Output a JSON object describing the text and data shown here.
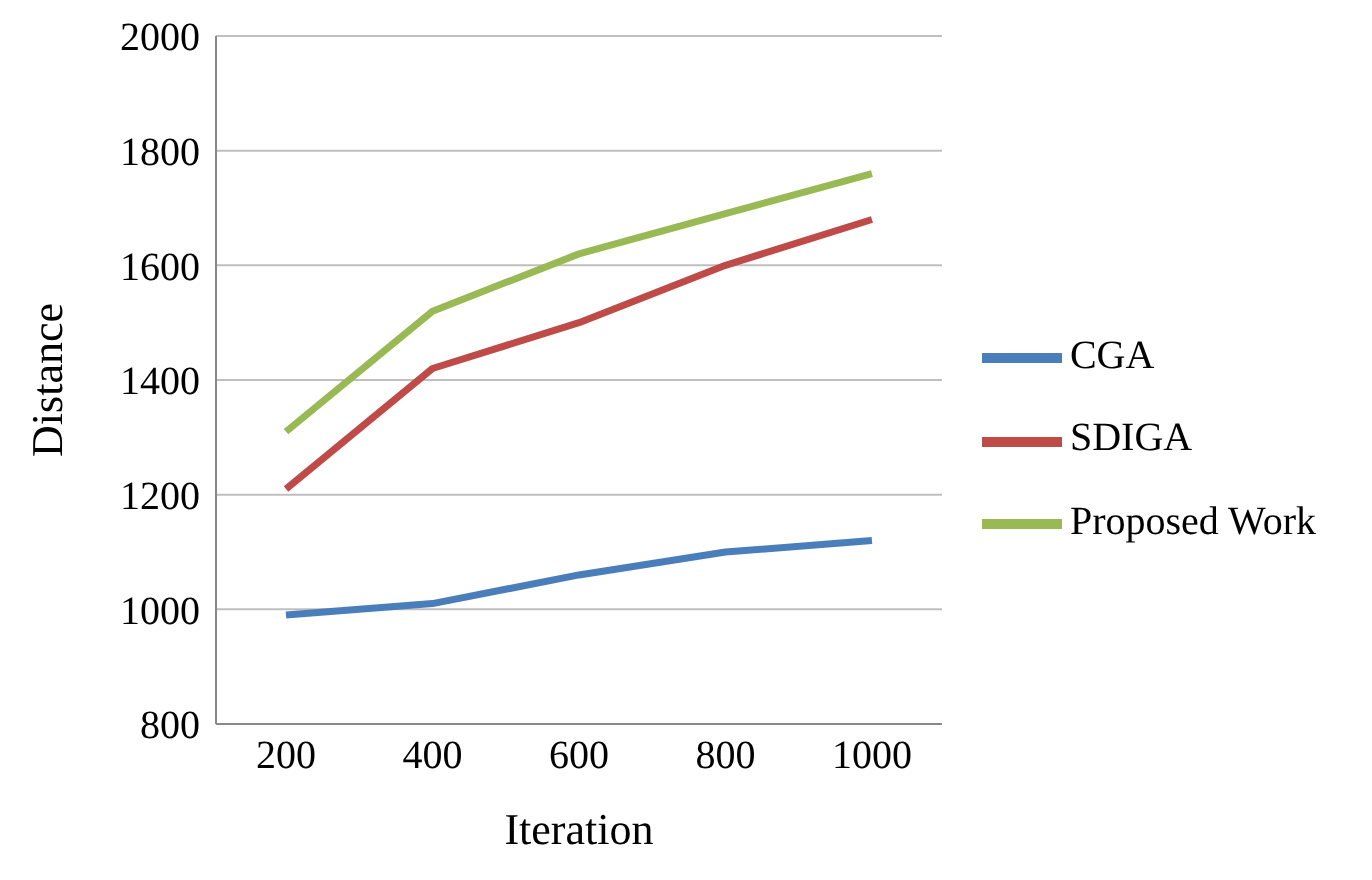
{
  "chart_data": {
    "type": "line",
    "xlabel": "Iteration",
    "ylabel": "Distance",
    "categories": [
      "200",
      "400",
      "600",
      "800",
      "1000"
    ],
    "series": [
      {
        "name": "CGA",
        "color": "#4a7ebb",
        "values": [
          990,
          1010,
          1060,
          1100,
          1120
        ]
      },
      {
        "name": "SDIGA",
        "color": "#be4b48",
        "values": [
          1210,
          1420,
          1500,
          1600,
          1680
        ]
      },
      {
        "name": "Proposed Work",
        "color": "#98b954",
        "values": [
          1310,
          1520,
          1620,
          1690,
          1760
        ]
      }
    ],
    "ylim": [
      800,
      2000
    ],
    "yticks": [
      800,
      1000,
      1200,
      1400,
      1600,
      1800,
      2000
    ],
    "grid": "y",
    "legend": "right",
    "marker": "none",
    "line_style": "solid"
  }
}
